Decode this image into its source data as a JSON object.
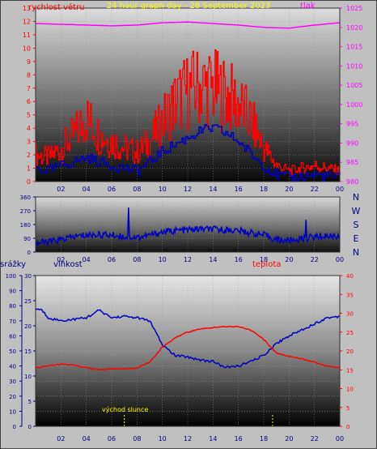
{
  "chart_data": [
    {
      "type": "line",
      "title": "24 hour graph day - 28 September 2023",
      "x_ticks": [
        "02",
        "04",
        "06",
        "08",
        "10",
        "12",
        "14",
        "16",
        "18",
        "20",
        "22",
        "00"
      ],
      "y_left": {
        "label": "rychlost větru",
        "ticks": [
          "0",
          "1",
          "2",
          "3",
          "4",
          "5",
          "6",
          "7",
          "8",
          "9",
          "10",
          "11",
          "12",
          "13"
        ],
        "ylim": [
          0,
          13
        ]
      },
      "y_right": {
        "label": "tlak",
        "ticks": [
          "980",
          "985",
          "990",
          "995",
          "1000",
          "1005",
          "1010",
          "1015",
          "1020",
          "1025"
        ],
        "ylim": [
          980,
          1025
        ]
      },
      "series": [
        {
          "axis": "left",
          "color": "#ff0000",
          "hours": [
            0,
            1,
            2,
            3,
            4,
            5,
            6,
            7,
            8,
            9,
            10,
            11,
            12,
            13,
            14,
            15,
            16,
            17,
            18,
            19,
            20,
            21,
            22,
            23,
            24
          ],
          "values": [
            2.0,
            1.8,
            2.5,
            3.5,
            4.8,
            3.5,
            3.0,
            2.5,
            2.2,
            3.0,
            4.5,
            6.0,
            6.8,
            7.2,
            7.0,
            6.5,
            5.8,
            4.5,
            2.5,
            1.2,
            0.8,
            1.0,
            1.2,
            1.0,
            0.8
          ]
        },
        {
          "axis": "left",
          "color": "#0000c0",
          "hours": [
            0,
            1,
            2,
            3,
            4,
            5,
            6,
            7,
            8,
            9,
            10,
            11,
            12,
            13,
            14,
            15,
            16,
            17,
            18,
            19,
            20,
            21,
            22,
            23,
            24
          ],
          "values": [
            1.0,
            0.8,
            1.2,
            1.5,
            1.8,
            1.5,
            1.2,
            1.0,
            0.8,
            1.5,
            2.3,
            2.8,
            3.3,
            3.8,
            4.0,
            3.6,
            3.0,
            2.0,
            1.2,
            0.5,
            0.3,
            0.4,
            0.5,
            0.4,
            0.3
          ]
        },
        {
          "axis": "right",
          "color": "#ff00ff",
          "hours": [
            0,
            2,
            4,
            6,
            8,
            10,
            12,
            14,
            16,
            18,
            20,
            22,
            24
          ],
          "values": [
            1021,
            1020.8,
            1020.6,
            1020.4,
            1020.6,
            1021.2,
            1021.4,
            1021,
            1020.6,
            1020,
            1019.8,
            1020.6,
            1021.2
          ]
        }
      ]
    },
    {
      "type": "line",
      "x_ticks": [
        "02",
        "04",
        "06",
        "08",
        "10",
        "12",
        "14",
        "16",
        "18",
        "20",
        "22",
        "00"
      ],
      "y_left": {
        "ticks": [
          "0",
          "90",
          "180",
          "270",
          "360"
        ],
        "ylim": [
          0,
          360
        ]
      },
      "compass": [
        "N",
        "W",
        "S",
        "E",
        "N"
      ],
      "series": [
        {
          "color": "#0000c0",
          "hours": [
            0,
            1,
            2,
            3,
            4,
            5,
            6,
            7,
            8,
            9,
            10,
            11,
            12,
            13,
            14,
            15,
            16,
            17,
            18,
            19,
            20,
            21,
            22,
            23,
            24
          ],
          "values": [
            60,
            65,
            80,
            100,
            110,
            115,
            110,
            100,
            95,
            110,
            130,
            140,
            145,
            150,
            148,
            145,
            140,
            125,
            110,
            80,
            75,
            85,
            100,
            105,
            100
          ]
        }
      ]
    },
    {
      "type": "line",
      "x_ticks": [
        "02",
        "04",
        "06",
        "08",
        "10",
        "12",
        "14",
        "16",
        "18",
        "20",
        "22",
        "00"
      ],
      "labels": {
        "precip": "srážky",
        "humidity": "vlhkost",
        "temperature": "teplota",
        "sunrise": "východ slunce"
      },
      "y_precip": {
        "ticks": [
          "0",
          "10",
          "20",
          "30",
          "40",
          "50",
          "60",
          "70",
          "80",
          "90",
          "100"
        ],
        "ylim": [
          0,
          100
        ]
      },
      "y_humidity": {
        "ticks": [
          "0",
          "5",
          "10",
          "15",
          "20",
          "25",
          "30"
        ],
        "ylim": [
          0,
          30
        ]
      },
      "y_temp": {
        "ticks": [
          "0",
          "5",
          "10",
          "15",
          "20",
          "25",
          "30",
          "35",
          "40"
        ],
        "ylim": [
          0,
          40
        ]
      },
      "sunrise_hour": 7.0,
      "sunset_hour": 18.7,
      "series": [
        {
          "name": "vlhkost",
          "color": "#0000c0",
          "hours": [
            0,
            0.5,
            1,
            2,
            3,
            4,
            5,
            6,
            7,
            8,
            9,
            10,
            11,
            12,
            13,
            14,
            15,
            16,
            17,
            18,
            19,
            20,
            21,
            22,
            23,
            24
          ],
          "values": [
            78,
            77,
            72,
            70,
            71,
            72,
            77,
            72,
            73,
            72,
            70,
            54,
            47,
            46,
            44,
            43,
            39,
            40,
            43,
            47,
            55,
            60,
            64,
            68,
            72,
            73
          ]
        },
        {
          "name": "teplota",
          "color": "#ff0000",
          "hours": [
            0,
            1,
            2,
            3,
            4,
            5,
            6,
            7,
            8,
            9,
            10,
            11,
            12,
            13,
            14,
            15,
            16,
            17,
            18,
            19,
            20,
            21,
            22,
            23,
            24
          ],
          "values": [
            15.5,
            16.0,
            16.5,
            16.2,
            15.5,
            15.0,
            15.3,
            15.2,
            15.5,
            17.0,
            21.0,
            23.5,
            25.0,
            25.8,
            26.2,
            26.5,
            26.5,
            25.5,
            23.0,
            19.5,
            18.5,
            18.0,
            17.0,
            16.0,
            15.5
          ]
        }
      ]
    }
  ]
}
